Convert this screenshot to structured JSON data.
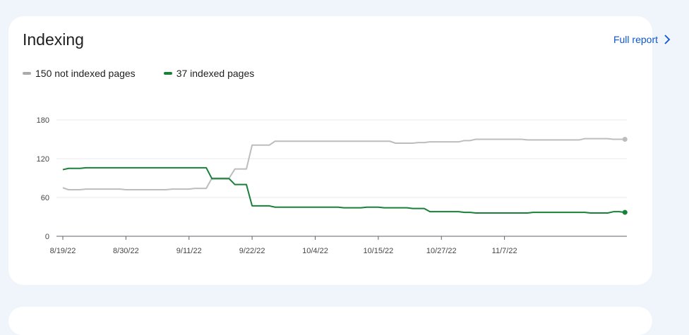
{
  "card": {
    "title": "Indexing",
    "full_report_label": "Full report"
  },
  "legend": [
    {
      "label": "150 not indexed pages",
      "color": "#aaaaaa"
    },
    {
      "label": "37 indexed pages",
      "color": "#188038"
    }
  ],
  "chart_data": {
    "type": "line",
    "title": "Indexing",
    "xlabel": "",
    "ylabel": "",
    "ylim": [
      0,
      180
    ],
    "yticks": [
      0,
      60,
      120,
      180
    ],
    "x_tick_labels": [
      "8/19/22",
      "8/30/22",
      "9/11/22",
      "9/22/22",
      "10/4/22",
      "10/15/22",
      "10/27/22",
      "11/7/22"
    ],
    "x_start": "2022-08-19",
    "grid": true,
    "legend_position": "top-left",
    "series": [
      {
        "name": "150 not indexed pages",
        "color": "#bdbdbd",
        "values": [
          75,
          72,
          72,
          72,
          73,
          73,
          73,
          73,
          73,
          73,
          73,
          72,
          72,
          72,
          72,
          72,
          72,
          72,
          72,
          73,
          73,
          73,
          73,
          74,
          74,
          74,
          90,
          90,
          90,
          90,
          104,
          104,
          104,
          141,
          141,
          141,
          141,
          147,
          147,
          147,
          147,
          147,
          147,
          147,
          147,
          147,
          147,
          147,
          147,
          147,
          147,
          147,
          147,
          147,
          147,
          147,
          147,
          147,
          144,
          144,
          144,
          144,
          145,
          145,
          146,
          146,
          146,
          146,
          146,
          146,
          148,
          148,
          150,
          150,
          150,
          150,
          150,
          150,
          150,
          150,
          150,
          149,
          149,
          149,
          149,
          149,
          149,
          149,
          149,
          149,
          149,
          151,
          151,
          151,
          151,
          151,
          150,
          150,
          150
        ]
      },
      {
        "name": "37 indexed pages",
        "color": "#188038",
        "values": [
          103,
          105,
          105,
          105,
          106,
          106,
          106,
          106,
          106,
          106,
          106,
          106,
          106,
          106,
          106,
          106,
          106,
          106,
          106,
          106,
          106,
          106,
          106,
          106,
          106,
          106,
          89,
          89,
          89,
          89,
          80,
          80,
          80,
          47,
          47,
          47,
          47,
          45,
          45,
          45,
          45,
          45,
          45,
          45,
          45,
          45,
          45,
          45,
          45,
          44,
          44,
          44,
          44,
          45,
          45,
          45,
          44,
          44,
          44,
          44,
          44,
          43,
          43,
          43,
          38,
          38,
          38,
          38,
          38,
          38,
          37,
          37,
          36,
          36,
          36,
          36,
          36,
          36,
          36,
          36,
          36,
          36,
          37,
          37,
          37,
          37,
          37,
          37,
          37,
          37,
          37,
          37,
          36,
          36,
          36,
          36,
          38,
          38,
          37
        ]
      }
    ]
  }
}
